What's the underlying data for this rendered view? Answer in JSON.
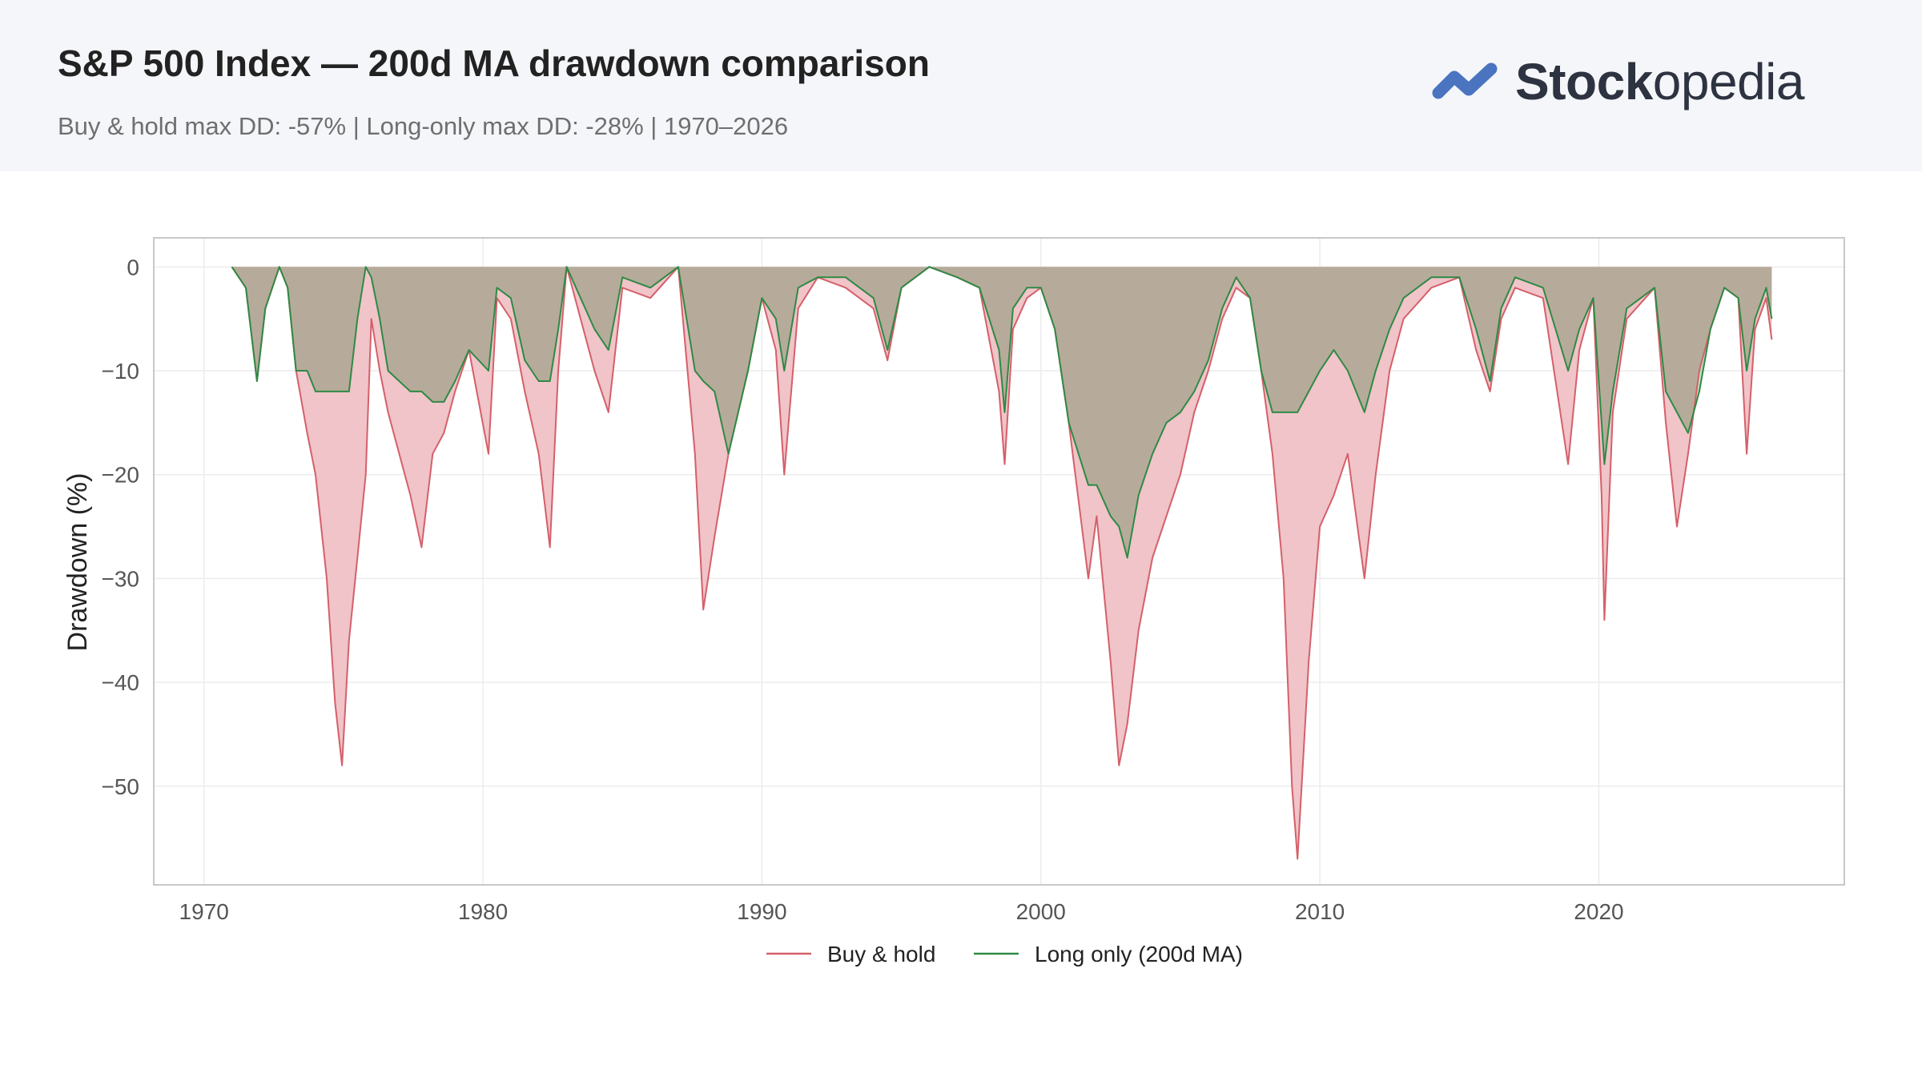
{
  "header": {
    "title": "S&P 500 Index — 200d MA drawdown comparison",
    "subtitle": "Buy & hold max DD: -57%  |  Long-only max DD: -28%  |  1970–2026"
  },
  "logo": {
    "name_bold": "Stock",
    "name_regular": "opedia",
    "icon": "stockopedia-zigzag-icon",
    "color": "#4a74c0"
  },
  "chart_data": {
    "type": "area",
    "title": "S&P 500 Index — 200d MA drawdown comparison",
    "xlabel": "",
    "ylabel": "Drawdown (%)",
    "xlim": [
      1968.2,
      2028.8
    ],
    "ylim": [
      -59.5,
      2.8
    ],
    "xticks": [
      1970,
      1980,
      1990,
      2000,
      2010,
      2020
    ],
    "yticks": [
      0,
      -10,
      -20,
      -30,
      -40,
      -50
    ],
    "xtick_labels": [
      "1970",
      "1980",
      "1990",
      "2000",
      "2010",
      "2020"
    ],
    "ytick_labels": [
      "0",
      "−10",
      "−20",
      "−30",
      "−40",
      "−50"
    ],
    "grid": true,
    "legend": "bottom-center",
    "series": [
      {
        "name": "Buy & hold",
        "color": "#d4606a",
        "fill": "#f0c4c8",
        "x": [
          1971.0,
          1971.5,
          1971.9,
          1972.2,
          1972.7,
          1973.0,
          1973.3,
          1973.7,
          1974.0,
          1974.4,
          1974.7,
          1974.95,
          1975.2,
          1975.5,
          1975.8,
          1976.0,
          1976.3,
          1976.6,
          1977.0,
          1977.4,
          1977.8,
          1978.2,
          1978.6,
          1979.0,
          1979.5,
          1980.2,
          1980.5,
          1981.0,
          1981.5,
          1982.0,
          1982.4,
          1982.7,
          1983.0,
          1983.5,
          1984.0,
          1984.5,
          1985.0,
          1986.0,
          1987.0,
          1987.6,
          1987.9,
          1988.3,
          1988.8,
          1989.5,
          1990.0,
          1990.5,
          1990.8,
          1991.3,
          1992.0,
          1993.0,
          1994.0,
          1994.5,
          1995.0,
          1996.0,
          1997.0,
          1997.8,
          1998.5,
          1998.7,
          1999.0,
          1999.5,
          2000.0,
          2000.5,
          2001.0,
          2001.7,
          2002.0,
          2002.5,
          2002.8,
          2003.1,
          2003.5,
          2004.0,
          2004.5,
          2005.0,
          2005.5,
          2006.0,
          2006.5,
          2007.0,
          2007.5,
          2007.9,
          2008.3,
          2008.7,
          2009.0,
          2009.2,
          2009.6,
          2010.0,
          2010.5,
          2011.0,
          2011.6,
          2012.0,
          2012.5,
          2013.0,
          2014.0,
          2015.0,
          2015.6,
          2016.1,
          2016.5,
          2017.0,
          2018.0,
          2018.9,
          2019.3,
          2019.8,
          2020.1,
          2020.2,
          2020.5,
          2021.0,
          2022.0,
          2022.4,
          2022.8,
          2023.2,
          2023.6,
          2024.0,
          2024.5,
          2025.0,
          2025.3,
          2025.6,
          2026.0,
          2026.2
        ],
        "values": [
          0,
          -2,
          -11,
          -4,
          0,
          -2,
          -10,
          -16,
          -20,
          -30,
          -42,
          -48,
          -36,
          -28,
          -20,
          -5,
          -10,
          -14,
          -18,
          -22,
          -27,
          -18,
          -16,
          -12,
          -8,
          -18,
          -3,
          -5,
          -12,
          -18,
          -27,
          -10,
          0,
          -5,
          -10,
          -14,
          -2,
          -3,
          0,
          -18,
          -33,
          -26,
          -18,
          -10,
          -3,
          -8,
          -20,
          -4,
          -1,
          -2,
          -4,
          -9,
          -2,
          0,
          -1,
          -2,
          -12,
          -19,
          -6,
          -3,
          -2,
          -6,
          -15,
          -30,
          -24,
          -38,
          -48,
          -44,
          -35,
          -28,
          -24,
          -20,
          -14,
          -10,
          -5,
          -2,
          -3,
          -10,
          -18,
          -30,
          -50,
          -57,
          -38,
          -25,
          -22,
          -18,
          -30,
          -20,
          -10,
          -5,
          -2,
          -1,
          -8,
          -12,
          -5,
          -2,
          -3,
          -19,
          -8,
          -3,
          -22,
          -34,
          -14,
          -5,
          -2,
          -15,
          -25,
          -18,
          -10,
          -6,
          -2,
          -3,
          -18,
          -6,
          -3,
          -7
        ]
      },
      {
        "name": "Long only (200d MA)",
        "color": "#2e8a45",
        "fill": "#c2dfc4",
        "x": [
          1971.0,
          1971.5,
          1971.9,
          1972.2,
          1972.7,
          1973.0,
          1973.3,
          1973.7,
          1974.0,
          1974.7,
          1975.2,
          1975.5,
          1975.8,
          1976.0,
          1976.3,
          1976.6,
          1977.0,
          1977.4,
          1977.8,
          1978.2,
          1978.6,
          1979.0,
          1979.5,
          1980.2,
          1980.5,
          1981.0,
          1981.5,
          1982.0,
          1982.4,
          1982.7,
          1983.0,
          1983.5,
          1984.0,
          1984.5,
          1985.0,
          1986.0,
          1987.0,
          1987.6,
          1987.9,
          1988.3,
          1988.8,
          1989.5,
          1990.0,
          1990.5,
          1990.8,
          1991.3,
          1992.0,
          1993.0,
          1994.0,
          1994.5,
          1995.0,
          1996.0,
          1997.0,
          1997.8,
          1998.5,
          1998.7,
          1999.0,
          1999.5,
          2000.0,
          2000.5,
          2001.0,
          2001.7,
          2002.0,
          2002.5,
          2002.8,
          2003.1,
          2003.5,
          2004.0,
          2004.5,
          2005.0,
          2005.5,
          2006.0,
          2006.5,
          2007.0,
          2007.5,
          2007.9,
          2008.3,
          2008.7,
          2009.0,
          2009.2,
          2009.6,
          2010.0,
          2010.5,
          2011.0,
          2011.6,
          2012.0,
          2012.5,
          2013.0,
          2014.0,
          2015.0,
          2015.6,
          2016.1,
          2016.5,
          2017.0,
          2018.0,
          2018.9,
          2019.3,
          2019.8,
          2020.1,
          2020.2,
          2020.5,
          2021.0,
          2022.0,
          2022.4,
          2022.8,
          2023.2,
          2023.6,
          2024.0,
          2024.5,
          2025.0,
          2025.3,
          2025.6,
          2026.0,
          2026.2
        ],
        "values": [
          0,
          -2,
          -11,
          -4,
          0,
          -2,
          -10,
          -10,
          -12,
          -12,
          -12,
          -5,
          0,
          -1,
          -5,
          -10,
          -11,
          -12,
          -12,
          -13,
          -13,
          -11,
          -8,
          -10,
          -2,
          -3,
          -9,
          -11,
          -11,
          -6,
          0,
          -3,
          -6,
          -8,
          -1,
          -2,
          0,
          -10,
          -11,
          -12,
          -18,
          -10,
          -3,
          -5,
          -10,
          -2,
          -1,
          -1,
          -3,
          -8,
          -2,
          0,
          -1,
          -2,
          -8,
          -14,
          -4,
          -2,
          -2,
          -6,
          -15,
          -21,
          -21,
          -24,
          -25,
          -28,
          -22,
          -18,
          -15,
          -14,
          -12,
          -9,
          -4,
          -1,
          -3,
          -10,
          -14,
          -14,
          -14,
          -14,
          -12,
          -10,
          -8,
          -10,
          -14,
          -10,
          -6,
          -3,
          -1,
          -1,
          -6,
          -11,
          -4,
          -1,
          -2,
          -10,
          -6,
          -3,
          -15,
          -19,
          -12,
          -4,
          -2,
          -12,
          -14,
          -16,
          -12,
          -6,
          -2,
          -3,
          -10,
          -5,
          -2,
          -5
        ]
      }
    ]
  }
}
